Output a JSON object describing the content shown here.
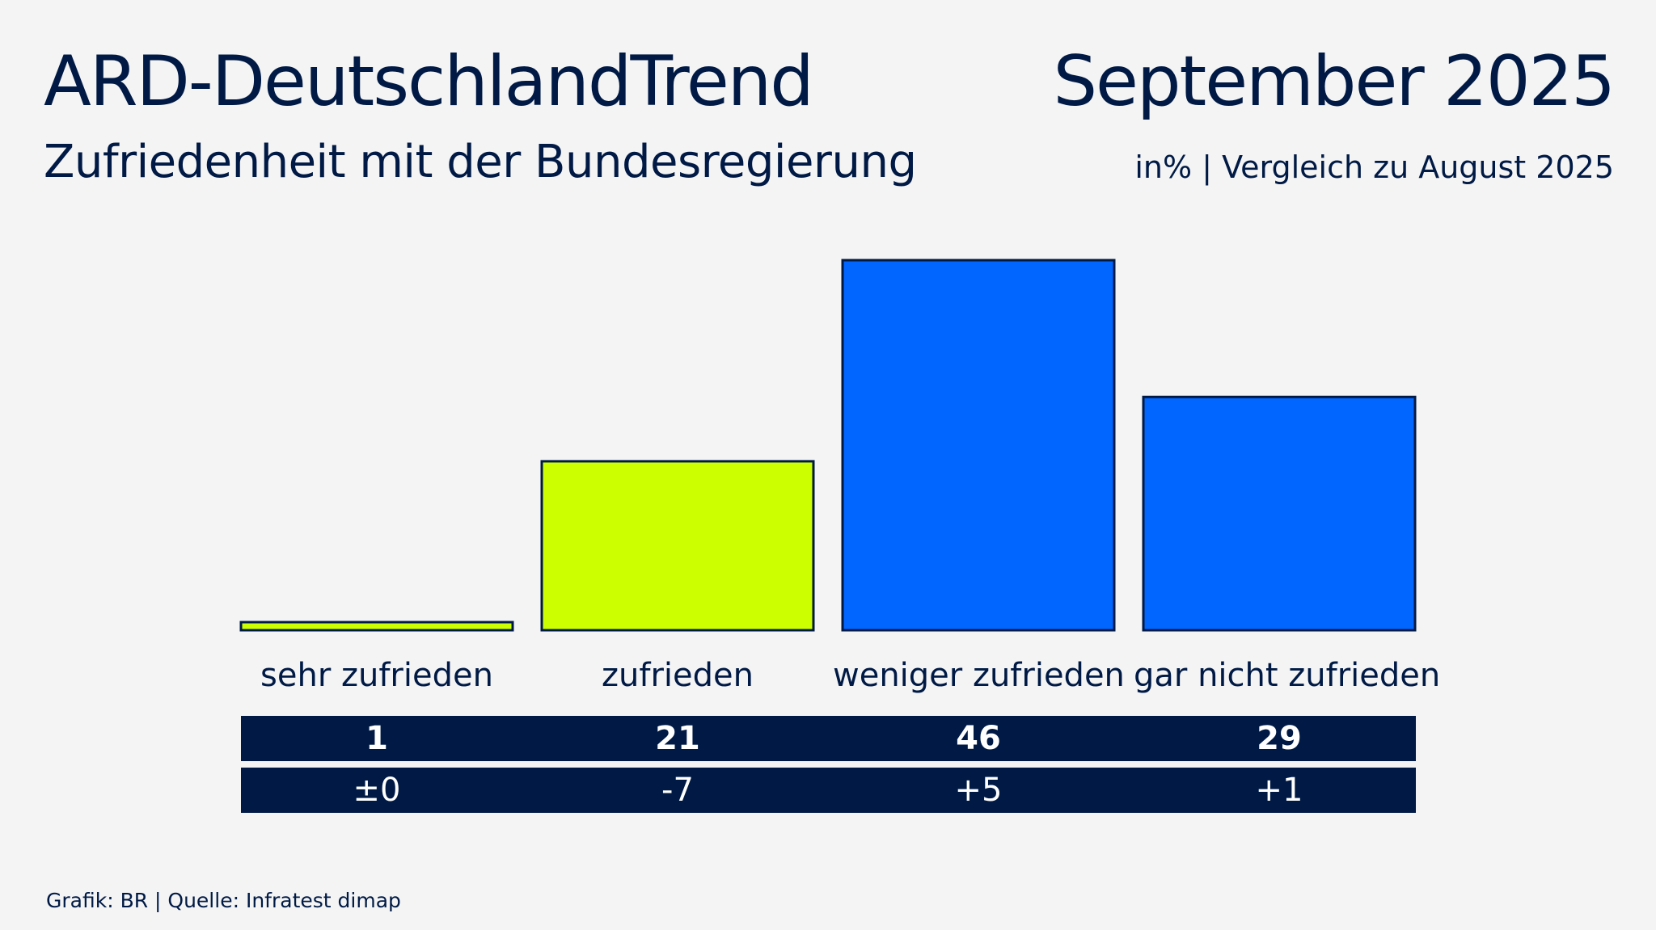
{
  "header": {
    "title": "ARD-DeutschlandTrend",
    "period": "September 2025",
    "subtitle": "Zufriedenheit mit der Bundesregierung",
    "unit_note": "in% | Vergleich zu August 2025"
  },
  "footer": {
    "source": "Grafik: BR | Quelle: Infratest dimap"
  },
  "colors": {
    "background": "#f4f4f4",
    "navy": "#001a45",
    "positive_bar": "#ccff00",
    "negative_bar": "#0066ff"
  },
  "chart_data": {
    "type": "bar",
    "categories": [
      "sehr zufrieden",
      "zufrieden",
      "weniger zufrieden",
      "gar nicht zufrieden"
    ],
    "values": [
      1,
      21,
      46,
      29
    ],
    "value_labels": [
      "1",
      "21",
      "46",
      "29"
    ],
    "changes": [
      "±0",
      "-7",
      "+5",
      "+1"
    ],
    "bar_colors": [
      "#ccff00",
      "#ccff00",
      "#0066ff",
      "#0066ff"
    ],
    "ylim": [
      0,
      46
    ],
    "grid": false,
    "legend": "none"
  }
}
